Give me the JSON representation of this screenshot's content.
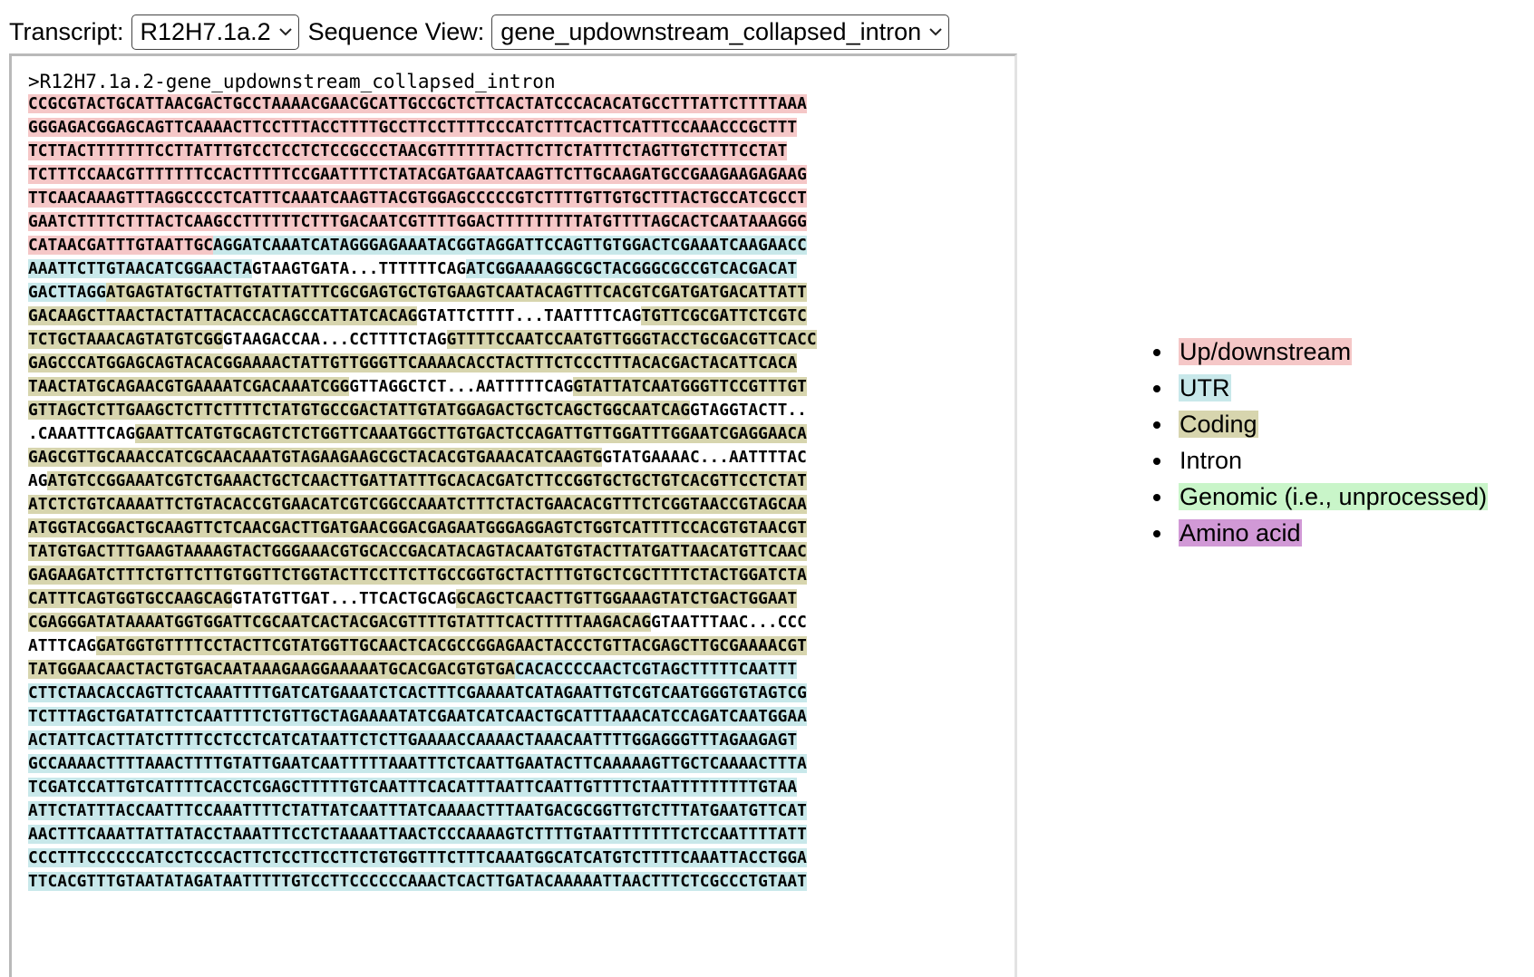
{
  "controls": {
    "transcript_label": "Transcript:",
    "transcript_value": "R12H7.1a.2",
    "view_label": "Sequence View:",
    "view_value": "gene_updownstream_collapsed_intron"
  },
  "colors": {
    "up": "#f5c7c7",
    "utr": "#c8e8ea",
    "coding": "#d7d5ae",
    "intron": "#ffffff",
    "genomic": "#c9f5c9",
    "aa": "#d199d6"
  },
  "sequence": {
    "header": ">R12H7.1a.2-gene_updownstream_collapsed_intron",
    "lines": [
      [
        [
          "up",
          "CCGCGTACTGCATTAACGACTGCCTAAAACGAACGCATTGCCGCTCTTCACTATCCCACACATGCCTTTATTCTTTTAAA"
        ]
      ],
      [
        [
          "up",
          "GGGAGACGGAGCAGTTCAAAACTTCCTTTACCTTTTGCCTTCCTTTTCCCATCTTTCACTTCATTTCCAAACCCGCTTT"
        ]
      ],
      [
        [
          "up",
          "TCTTACTTTTTTTCCTTATTTGTCCTCCTCTCCGCCCTAACGTTTTTTACTTCTTCTATTTCTAGTTGTCTTTCCTAT"
        ]
      ],
      [
        [
          "up",
          "TCTTTCCAACGTTTTTTTCCACTTTTTCCGAATTTTCTATACGATGAATCAAGTTCTTGCAAGATGCCGAAGAAGAGAAG"
        ]
      ],
      [
        [
          "up",
          "TTCAACAAAGTTTAGGCCCCTCATTTCAAATCAAGTTACGTGGAGCCCCCGTCTTTTGTTGTGCTTTACTGCCATCGCCT"
        ]
      ],
      [
        [
          "up",
          "GAATCTTTTCTTTACTCAAGCCTTTTTTCTTTGACAATCGTTTTGGACTTTTTTTTTATGTTTTAGCACTCAATAAAGGG"
        ]
      ],
      [
        [
          "up",
          "CATAACGATTTGTAATTGC"
        ],
        [
          "utr",
          "AGGATCAAATCATAGGGAGAAATACGGTAGGATTCCAGTTGTGGACTCGAAATCAAGAACC"
        ]
      ],
      [
        [
          "utr",
          "AAATTCTTGTAACATCGGAACTA"
        ],
        [
          "intron",
          "GTAAGTGATA...TTTTTTCAG"
        ],
        [
          "utr",
          "ATCGGAAAAGGCGCTACGGGCGCCGTCACGACAT"
        ]
      ],
      [
        [
          "utr",
          "GACTTAGG"
        ],
        [
          "coding",
          "ATGAGTATGCTATTGTATTATTTCGCGAGTGCTGTGAAGTCAATACAGTTTCACGTCGATGATGACATTATT"
        ]
      ],
      [
        [
          "coding",
          "GACAAGCTTAACTACTATTACACCACAGCCATTATCACAG"
        ],
        [
          "intron",
          "GTATTCTTTT...TAATTTTCAG"
        ],
        [
          "coding",
          "TGTTCGCGATTCTCGTC"
        ]
      ],
      [
        [
          "coding",
          "TCTGCTAAACAGTATGTCGG"
        ],
        [
          "intron",
          "GTAAGACCAA...CCTTTTCTAG"
        ],
        [
          "coding",
          "GTTTTCCAATCCAATGTTGGGTACCTGCGACGTTCACC"
        ]
      ],
      [
        [
          "coding",
          "GAGCCCATGGAGCAGTACACGGAAAACTATTGTTGGGTTCAAAACACCTACTTTCTCCCTTTACACGACTACATTCACA"
        ]
      ],
      [
        [
          "coding",
          "TAACTATGCAGAACGTGAAAATCGACAAATCGG"
        ],
        [
          "intron",
          "GTTAGGCTCT...AATTTTTCAG"
        ],
        [
          "coding",
          "GTATTATCAATGGGTTCCGTTTGT"
        ]
      ],
      [
        [
          "coding",
          "GTTAGCTCTTGAAGCTCTTCTTTTCTATGTGCCGACTATTGTATGGAGACTGCTCAGCTGGCAATCAG"
        ],
        [
          "intron",
          "GTAGGTACTT.."
        ]
      ],
      [
        [
          "intron",
          ".CAAATTTCAG"
        ],
        [
          "coding",
          "GAATTCATGTGCAGTCTCTGGTTCAAATGGCTTGTGACTCCAGATTGTTGGATTTGGAATCGAGGAACA"
        ]
      ],
      [
        [
          "coding",
          "GAGCGTTGCAAACCATCGCAACAAATGTAGAAGAAGCGCTACACGTGAAACATCAAGTG"
        ],
        [
          "intron",
          "GTATGAAAAC...AATTTTAC"
        ]
      ],
      [
        [
          "intron",
          "AG"
        ],
        [
          "coding",
          "ATGTCCGGAAATCGTCTGAAACTGCTCAACTTGATTATTTGCACACGATCTTCCGGTGCTGCTGTCACGTTCCTCTAT"
        ]
      ],
      [
        [
          "coding",
          "ATCTCTGTCAAAATTCTGTACACCGTGAACATCGTCGGCCAAATCTTTCTACTGAACACGTTTCTCGGTAACCGTAGCAA"
        ]
      ],
      [
        [
          "coding",
          "ATGGTACGGACTGCAAGTTCTCAACGACTTGATGAACGGACGAGAATGGGAGGAGTCTGGTCATTTTCCACGTGTAACGT"
        ]
      ],
      [
        [
          "coding",
          "TATGTGACTTTGAAGTAAAAGTACTGGGAAACGTGCACCGACATACAGTACAATGTGTACTTATGATTAACATGTTCAAC"
        ]
      ],
      [
        [
          "coding",
          "GAGAAGATCTTTCTGTTCTTGTGGTTCTGGTACTTCCTTCTTGCCGGTGCTACTTTGTGCTCGCTTTTCTACTGGATCTA"
        ]
      ],
      [
        [
          "coding",
          "CATTTCAGTGGTGCCAAGCAG"
        ],
        [
          "intron",
          "GTATGTTGAT...TTCACTGCAG"
        ],
        [
          "coding",
          "GCAGCTCAACTTGTTGGAAAGTATCTGACTGGAAT"
        ]
      ],
      [
        [
          "coding",
          "CGAGGGATATAAAATGGTGGATTCGCAATCACTACGACGTTTTGTATTTCACTTTTTAAGACAG"
        ],
        [
          "intron",
          "GTAATTTAAC...CCC"
        ]
      ],
      [
        [
          "intron",
          "ATTTCAG"
        ],
        [
          "coding",
          "GATGGTGTTTTCCTACTTCGTATGGTTGCAACTCACGCCGGAGAACTACCCTGTTACGAGCTTGCGAAAACGT"
        ]
      ],
      [
        [
          "coding",
          "TATGGAACAACTACTGTGACAATAAAGAAGGAAAAATGCACGACGTGTGA"
        ],
        [
          "utr",
          "CACACCCCAACTCGTAGCTTTTTCAATTT"
        ]
      ],
      [
        [
          "utr",
          "CTTCTAACACCAGTTCTCAAATTTTGATCATGAAATCTCACTTTCGAAAATCATAGAATTGTCGTCAATGGGTGTAGTCG"
        ]
      ],
      [
        [
          "utr",
          "TCTTTAGCTGATATTCTCAATTTTCTGTTGCTAGAAAATATCGAATCATCAACTGCATTTAAACATCCAGATCAATGGAA"
        ]
      ],
      [
        [
          "utr",
          "ACTATTCACTTATCTTTTCCTCCTCATCATAATTCTCTTGAAAACCAAAACTAAACAATTTTGGAGGGTTTAGAAGAGT"
        ]
      ],
      [
        [
          "utr",
          "GCCAAAACTTTTAAACTTTTGTATTGAATCAATTTTTAAATTTCTCAATTGAATACTTCAAAAAGTTGCTCAAAACTTTA"
        ]
      ],
      [
        [
          "utr",
          "TCGATCCATTGTCATTTTCACCTCGAGCTTTTTGTCAATTTCACATTTAATTCAATTGTTTTCTAATTTTTTTTTGTAA"
        ]
      ],
      [
        [
          "utr",
          "ATTCTATTTACCAATTTCCAAATTTTCTATTATCAATTTATCAAAACTTTAATGACGCGGTTGTCTTTATGAATGTTCAT"
        ]
      ],
      [
        [
          "utr",
          "AACTTTCAAATTATTATACCTAAATTTCCTCTAAAATTAACTCCCAAAAGTCTTTTGTAATTTTTTTCTCCAATTTTATT"
        ]
      ],
      [
        [
          "utr",
          "CCCTTTCCCCCCATCCTCCCACTTCTCCTTCCTTCTGTGGTTTCTTTCAAATGGCATCATGTCTTTTCAAATTACCTGGA"
        ]
      ],
      [
        [
          "utr",
          "TTCACGTTTGTAATATAGATAATTTTTGTCCTTCCCCCCAAACTCACTTGATACAAAAATTAACTTTCTCGCCCTGTAAT"
        ]
      ]
    ]
  },
  "legend": [
    {
      "label": "Up/downstream",
      "color": "#f5c7c7"
    },
    {
      "label": "UTR",
      "color": "#c8e8ea"
    },
    {
      "label": "Coding",
      "color": "#d7d5ae"
    },
    {
      "label": "Intron",
      "color": "#ffffff"
    },
    {
      "label": "Genomic (i.e., unprocessed)",
      "color": "#c9f5c9"
    },
    {
      "label": "Amino acid",
      "color": "#d199d6"
    }
  ]
}
